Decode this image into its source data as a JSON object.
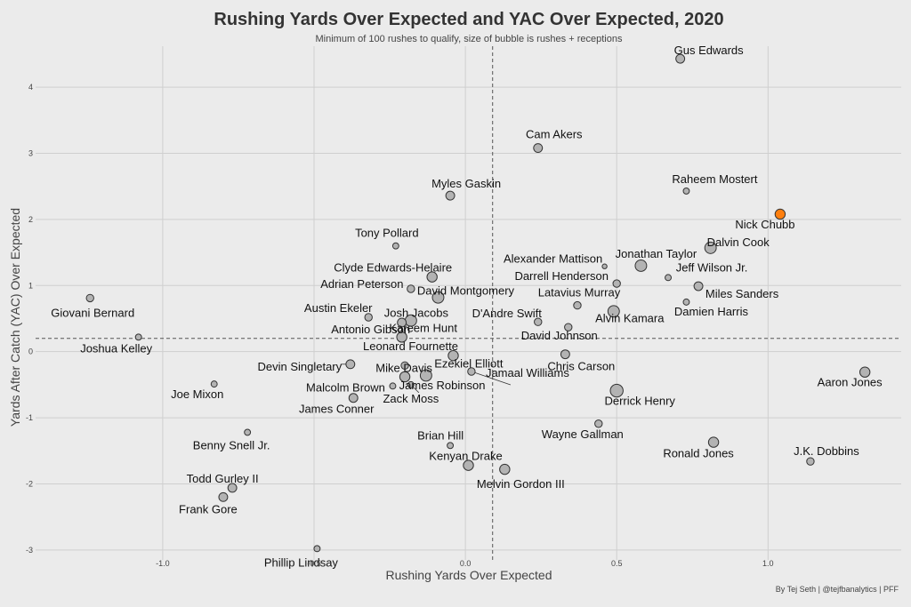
{
  "chart_data": {
    "type": "scatter",
    "title": "Rushing Yards Over Expected and YAC Over Expected, 2020",
    "subtitle": "Minimum of 100 rushes to qualify, size of bubble is rushes + receptions",
    "xlabel": "Rushing Yards Over Expected",
    "ylabel": "Yards After Catch (YAC) Over Expected",
    "caption": "By Tej Seth | @tejfbanalytics | PFF",
    "xlim": [
      -1.42,
      1.44
    ],
    "ylim": [
      -3.15,
      4.62
    ],
    "x_ticks": [
      -1.0,
      -0.5,
      0.0,
      0.5,
      1.0
    ],
    "x_tick_labels": [
      "-1.0",
      "-0.5",
      "0.0",
      "0.5",
      "1.0"
    ],
    "y_ticks": [
      -3,
      -2,
      -1,
      0,
      1,
      2,
      3,
      4
    ],
    "y_tick_labels": [
      "-3",
      "-2",
      "-1",
      "0",
      "1",
      "2",
      "3",
      "4"
    ],
    "grid": true,
    "ref_lines": {
      "x": 0.09,
      "y": 0.2
    },
    "colors": {
      "default_fill": "#b3b3b3",
      "highlight_fill": "#ff7f0e",
      "stroke": "#333333"
    },
    "points": [
      {
        "name": "Gus Edwards",
        "x": 0.71,
        "y": 4.43,
        "size": 5
      },
      {
        "name": "Cam Akers",
        "x": 0.24,
        "y": 3.08,
        "size": 5
      },
      {
        "name": "Raheem Mostert",
        "x": 0.73,
        "y": 2.43,
        "size": 3
      },
      {
        "name": "Myles Gaskin",
        "x": -0.05,
        "y": 2.36,
        "size": 5
      },
      {
        "name": "Nick Chubb",
        "x": 1.04,
        "y": 2.08,
        "size": 6,
        "highlight": true
      },
      {
        "name": "Tony Pollard",
        "x": -0.23,
        "y": 1.6,
        "size": 3
      },
      {
        "name": "Dalvin Cook",
        "x": 0.81,
        "y": 1.57,
        "size": 7
      },
      {
        "name": "Alexander Mattison",
        "x": 0.46,
        "y": 1.29,
        "size": 2
      },
      {
        "name": "Jonathan Taylor",
        "x": 0.58,
        "y": 1.3,
        "size": 7
      },
      {
        "name": "Jeff Wilson Jr.",
        "x": 0.67,
        "y": 1.12,
        "size": 3
      },
      {
        "name": "Clyde Edwards-Helaire",
        "x": -0.11,
        "y": 1.13,
        "size": 6
      },
      {
        "name": "Darrell Henderson",
        "x": 0.5,
        "y": 1.03,
        "size": 4
      },
      {
        "name": "Adrian Peterson",
        "x": -0.18,
        "y": 0.95,
        "size": 4
      },
      {
        "name": "David Montgomery",
        "x": -0.09,
        "y": 0.82,
        "size": 7
      },
      {
        "name": "Miles Sanders",
        "x": 0.77,
        "y": 0.99,
        "size": 5
      },
      {
        "name": "Giovani Bernard",
        "x": -1.24,
        "y": 0.81,
        "size": 4
      },
      {
        "name": "Latavius Murray",
        "x": 0.37,
        "y": 0.7,
        "size": 4
      },
      {
        "name": "Damien Harris",
        "x": 0.73,
        "y": 0.75,
        "size": 3
      },
      {
        "name": "Austin Ekeler",
        "x": -0.32,
        "y": 0.52,
        "size": 4
      },
      {
        "name": "Josh Jacobs",
        "x": -0.18,
        "y": 0.47,
        "size": 7
      },
      {
        "name": "D'Andre Swift",
        "x": 0.24,
        "y": 0.45,
        "size": 4
      },
      {
        "name": "Alvin Kamara",
        "x": 0.49,
        "y": 0.61,
        "size": 7
      },
      {
        "name": "Antonio Gibson",
        "x": -0.21,
        "y": 0.44,
        "size": 5
      },
      {
        "name": "Kareem Hunt",
        "x": -0.21,
        "y": 0.22,
        "size": 6
      },
      {
        "name": "David Johnson",
        "x": 0.34,
        "y": 0.37,
        "size": 4
      },
      {
        "name": "Joshua Kelley",
        "x": -1.08,
        "y": 0.22,
        "size": 3
      },
      {
        "name": "Leonard Fournette",
        "x": -0.04,
        "y": -0.06,
        "size": 6
      },
      {
        "name": "Chris Carson",
        "x": 0.33,
        "y": -0.04,
        "size": 5
      },
      {
        "name": "Devin Singletary",
        "x": -0.38,
        "y": -0.19,
        "size": 5
      },
      {
        "name": "Mike Davis",
        "x": -0.2,
        "y": -0.21,
        "size": 4
      },
      {
        "name": "Ezekiel Elliott",
        "x": -0.13,
        "y": -0.36,
        "size": 7
      },
      {
        "name": "Jamaal Williams",
        "x": 0.02,
        "y": -0.3,
        "size": 4
      },
      {
        "name": "James Robinson",
        "x": -0.2,
        "y": -0.38,
        "size": 6
      },
      {
        "name": "Malcolm Brown",
        "x": -0.24,
        "y": -0.52,
        "size": 3
      },
      {
        "name": "Zack Moss",
        "x": -0.18,
        "y": -0.5,
        "size": 3
      },
      {
        "name": "Joe Mixon",
        "x": -0.83,
        "y": -0.49,
        "size": 3
      },
      {
        "name": "Aaron Jones",
        "x": 1.32,
        "y": -0.31,
        "size": 6
      },
      {
        "name": "James Conner",
        "x": -0.37,
        "y": -0.7,
        "size": 5
      },
      {
        "name": "Derrick Henry",
        "x": 0.5,
        "y": -0.59,
        "size": 8
      },
      {
        "name": "Wayne Gallman",
        "x": 0.44,
        "y": -1.09,
        "size": 4
      },
      {
        "name": "Benny Snell Jr.",
        "x": -0.72,
        "y": -1.22,
        "size": 3
      },
      {
        "name": "Brian Hill",
        "x": -0.05,
        "y": -1.42,
        "size": 3
      },
      {
        "name": "Ronald Jones",
        "x": 0.82,
        "y": -1.37,
        "size": 6
      },
      {
        "name": "J.K. Dobbins",
        "x": 1.14,
        "y": -1.66,
        "size": 4
      },
      {
        "name": "Kenyan Drake",
        "x": 0.01,
        "y": -1.72,
        "size": 6
      },
      {
        "name": "Melvin Gordon III",
        "x": 0.13,
        "y": -1.78,
        "size": 6
      },
      {
        "name": "Todd Gurley II",
        "x": -0.77,
        "y": -2.06,
        "size": 5
      },
      {
        "name": "Frank Gore",
        "x": -0.8,
        "y": -2.2,
        "size": 5
      },
      {
        "name": "Phillip Lindsay",
        "x": -0.49,
        "y": -2.98,
        "size": 3
      }
    ]
  }
}
